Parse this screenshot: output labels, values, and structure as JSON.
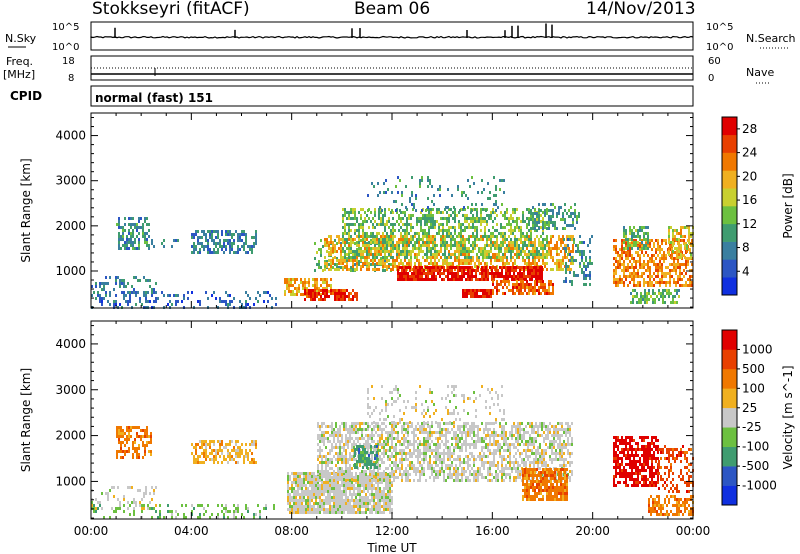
{
  "header": {
    "station": "Stokkseyri (fitACF)",
    "beam": "Beam 06",
    "date": "14/Nov/2013"
  },
  "aux_labels": {
    "nsky": "N.Sky",
    "nsky_top": "10^5",
    "nsky_bottom": "10^0",
    "nsky_right_top": "10^5",
    "nsky_right_bottom": "10^0",
    "nsearch": "N.Search",
    "freq_line1": "Freq.",
    "freq_line2": "[MHz]",
    "freq_top": "18",
    "freq_bottom": "8",
    "nave_top": "60",
    "nave_bottom": "0",
    "nave": "Nave",
    "cpid_label": "CPID",
    "cpid_value": "normal (fast) 151"
  },
  "chart_data": [
    {
      "type": "heatmap",
      "ylabel": "Slant Range [km]",
      "x_ticks": [
        "00:00",
        "04:00",
        "08:00",
        "12:00",
        "16:00",
        "20:00",
        "00:00"
      ],
      "y_ticks": [
        1000,
        2000,
        3000,
        4000
      ],
      "ylim": [
        180,
        4500
      ],
      "colorbar": {
        "label": "Power [dB]",
        "ticks": [
          4,
          8,
          12,
          16,
          20,
          24,
          28
        ],
        "range": [
          0,
          30
        ],
        "colors": [
          "#1030e0",
          "#2c56c4",
          "#3a7fa0",
          "#3f9c70",
          "#6cc040",
          "#c8d030",
          "#f0b020",
          "#f07800",
          "#e84000",
          "#e00000"
        ]
      },
      "regions": [
        {
          "t0": 0.0,
          "t1": 2.6,
          "r0": 300,
          "r1": 900,
          "value": 8,
          "density": 0.28
        },
        {
          "t0": 1.0,
          "t1": 2.3,
          "r0": 1500,
          "r1": 2200,
          "value": 9,
          "density": 0.5
        },
        {
          "t0": 2.3,
          "t1": 3.5,
          "r0": 1500,
          "r1": 1700,
          "value": 8,
          "density": 0.3
        },
        {
          "t0": 4.0,
          "t1": 6.6,
          "r0": 1400,
          "r1": 1900,
          "value": 8,
          "density": 0.55
        },
        {
          "t0": 0.0,
          "t1": 7.4,
          "r0": 200,
          "r1": 550,
          "value": 6,
          "density": 0.22
        },
        {
          "t0": 7.7,
          "t1": 9.6,
          "r0": 500,
          "r1": 850,
          "value": 20,
          "density": 0.7
        },
        {
          "t0": 8.5,
          "t1": 10.6,
          "r0": 350,
          "r1": 600,
          "value": 26,
          "density": 0.8
        },
        {
          "t0": 8.9,
          "t1": 12.0,
          "r0": 1000,
          "r1": 1700,
          "value": 12,
          "density": 0.35
        },
        {
          "t0": 9.3,
          "t1": 19.2,
          "r0": 1000,
          "r1": 1800,
          "value": 20,
          "density": 0.55
        },
        {
          "t0": 10.0,
          "t1": 18.2,
          "r0": 1300,
          "r1": 2400,
          "value": 13,
          "density": 0.5
        },
        {
          "t0": 11.0,
          "t1": 16.5,
          "r0": 2300,
          "r1": 3100,
          "value": 9,
          "density": 0.12
        },
        {
          "t0": 12.2,
          "t1": 18.0,
          "r0": 800,
          "r1": 1100,
          "value": 28,
          "density": 0.85
        },
        {
          "t0": 14.8,
          "t1": 16.0,
          "r0": 400,
          "r1": 600,
          "value": 28,
          "density": 0.9
        },
        {
          "t0": 16.0,
          "t1": 18.4,
          "r0": 500,
          "r1": 800,
          "value": 24,
          "density": 0.6
        },
        {
          "t0": 17.5,
          "t1": 19.5,
          "r0": 1900,
          "r1": 2500,
          "value": 10,
          "density": 0.45
        },
        {
          "t0": 18.8,
          "t1": 20.0,
          "r0": 700,
          "r1": 1800,
          "value": 9,
          "density": 0.3
        },
        {
          "t0": 20.8,
          "t1": 24.0,
          "r0": 700,
          "r1": 1700,
          "value": 22,
          "density": 0.6
        },
        {
          "t0": 21.2,
          "t1": 22.2,
          "r0": 1500,
          "r1": 2000,
          "value": 12,
          "density": 0.55
        },
        {
          "t0": 21.5,
          "t1": 23.5,
          "r0": 300,
          "r1": 600,
          "value": 12,
          "density": 0.55
        },
        {
          "t0": 23.0,
          "t1": 24.0,
          "r0": 1300,
          "r1": 2000,
          "value": 18,
          "density": 0.5
        }
      ]
    },
    {
      "type": "heatmap",
      "xlabel": "Time UT",
      "ylabel": "Slant Range [km]",
      "x_ticks": [
        "00:00",
        "04:00",
        "08:00",
        "12:00",
        "16:00",
        "20:00",
        "00:00"
      ],
      "y_ticks": [
        1000,
        2000,
        3000,
        4000
      ],
      "ylim": [
        180,
        4500
      ],
      "colorbar": {
        "label": "Velocity [m s^-1]",
        "tick_labels": [
          "1000",
          "500",
          "100",
          "25",
          "-25",
          "-100",
          "-500",
          "-1000"
        ],
        "colors": [
          "#1030e0",
          "#2c56c4",
          "#3f9c70",
          "#6cc040",
          "#c8c8c8",
          "#f0b020",
          "#f07800",
          "#e84000",
          "#e00000"
        ]
      },
      "regions": [
        {
          "t0": 0.0,
          "t1": 2.6,
          "r0": 400,
          "r1": 900,
          "value": 4,
          "density": 0.22
        },
        {
          "t0": 0.0,
          "t1": 7.4,
          "r0": 200,
          "r1": 500,
          "value": 3,
          "density": 0.25
        },
        {
          "t0": 1.0,
          "t1": 2.4,
          "r0": 1500,
          "r1": 2200,
          "value": 6,
          "density": 0.55
        },
        {
          "t0": 4.0,
          "t1": 6.6,
          "r0": 1400,
          "r1": 1900,
          "value": 5,
          "density": 0.5
        },
        {
          "t0": 7.8,
          "t1": 12.0,
          "r0": 300,
          "r1": 1200,
          "value": 4,
          "density": 0.85
        },
        {
          "t0": 9.0,
          "t1": 19.2,
          "r0": 1000,
          "r1": 2300,
          "value": 4,
          "density": 0.6
        },
        {
          "t0": 11.0,
          "t1": 16.5,
          "r0": 2300,
          "r1": 3100,
          "value": 4,
          "density": 0.15
        },
        {
          "t0": 10.5,
          "t1": 11.4,
          "r0": 1300,
          "r1": 1800,
          "value": 2,
          "density": 0.6
        },
        {
          "t0": 17.2,
          "t1": 19.0,
          "r0": 600,
          "r1": 1300,
          "value": 6,
          "density": 0.85
        },
        {
          "t0": 20.8,
          "t1": 22.6,
          "r0": 900,
          "r1": 2000,
          "value": 8,
          "density": 0.7
        },
        {
          "t0": 22.2,
          "t1": 24.0,
          "r0": 300,
          "r1": 700,
          "value": 6,
          "density": 0.6
        },
        {
          "t0": 22.6,
          "t1": 24.0,
          "r0": 800,
          "r1": 1800,
          "value": 7,
          "density": 0.4
        }
      ]
    }
  ],
  "colors": {
    "axis": "#000000",
    "text": "#000000",
    "background": "#ffffff"
  }
}
